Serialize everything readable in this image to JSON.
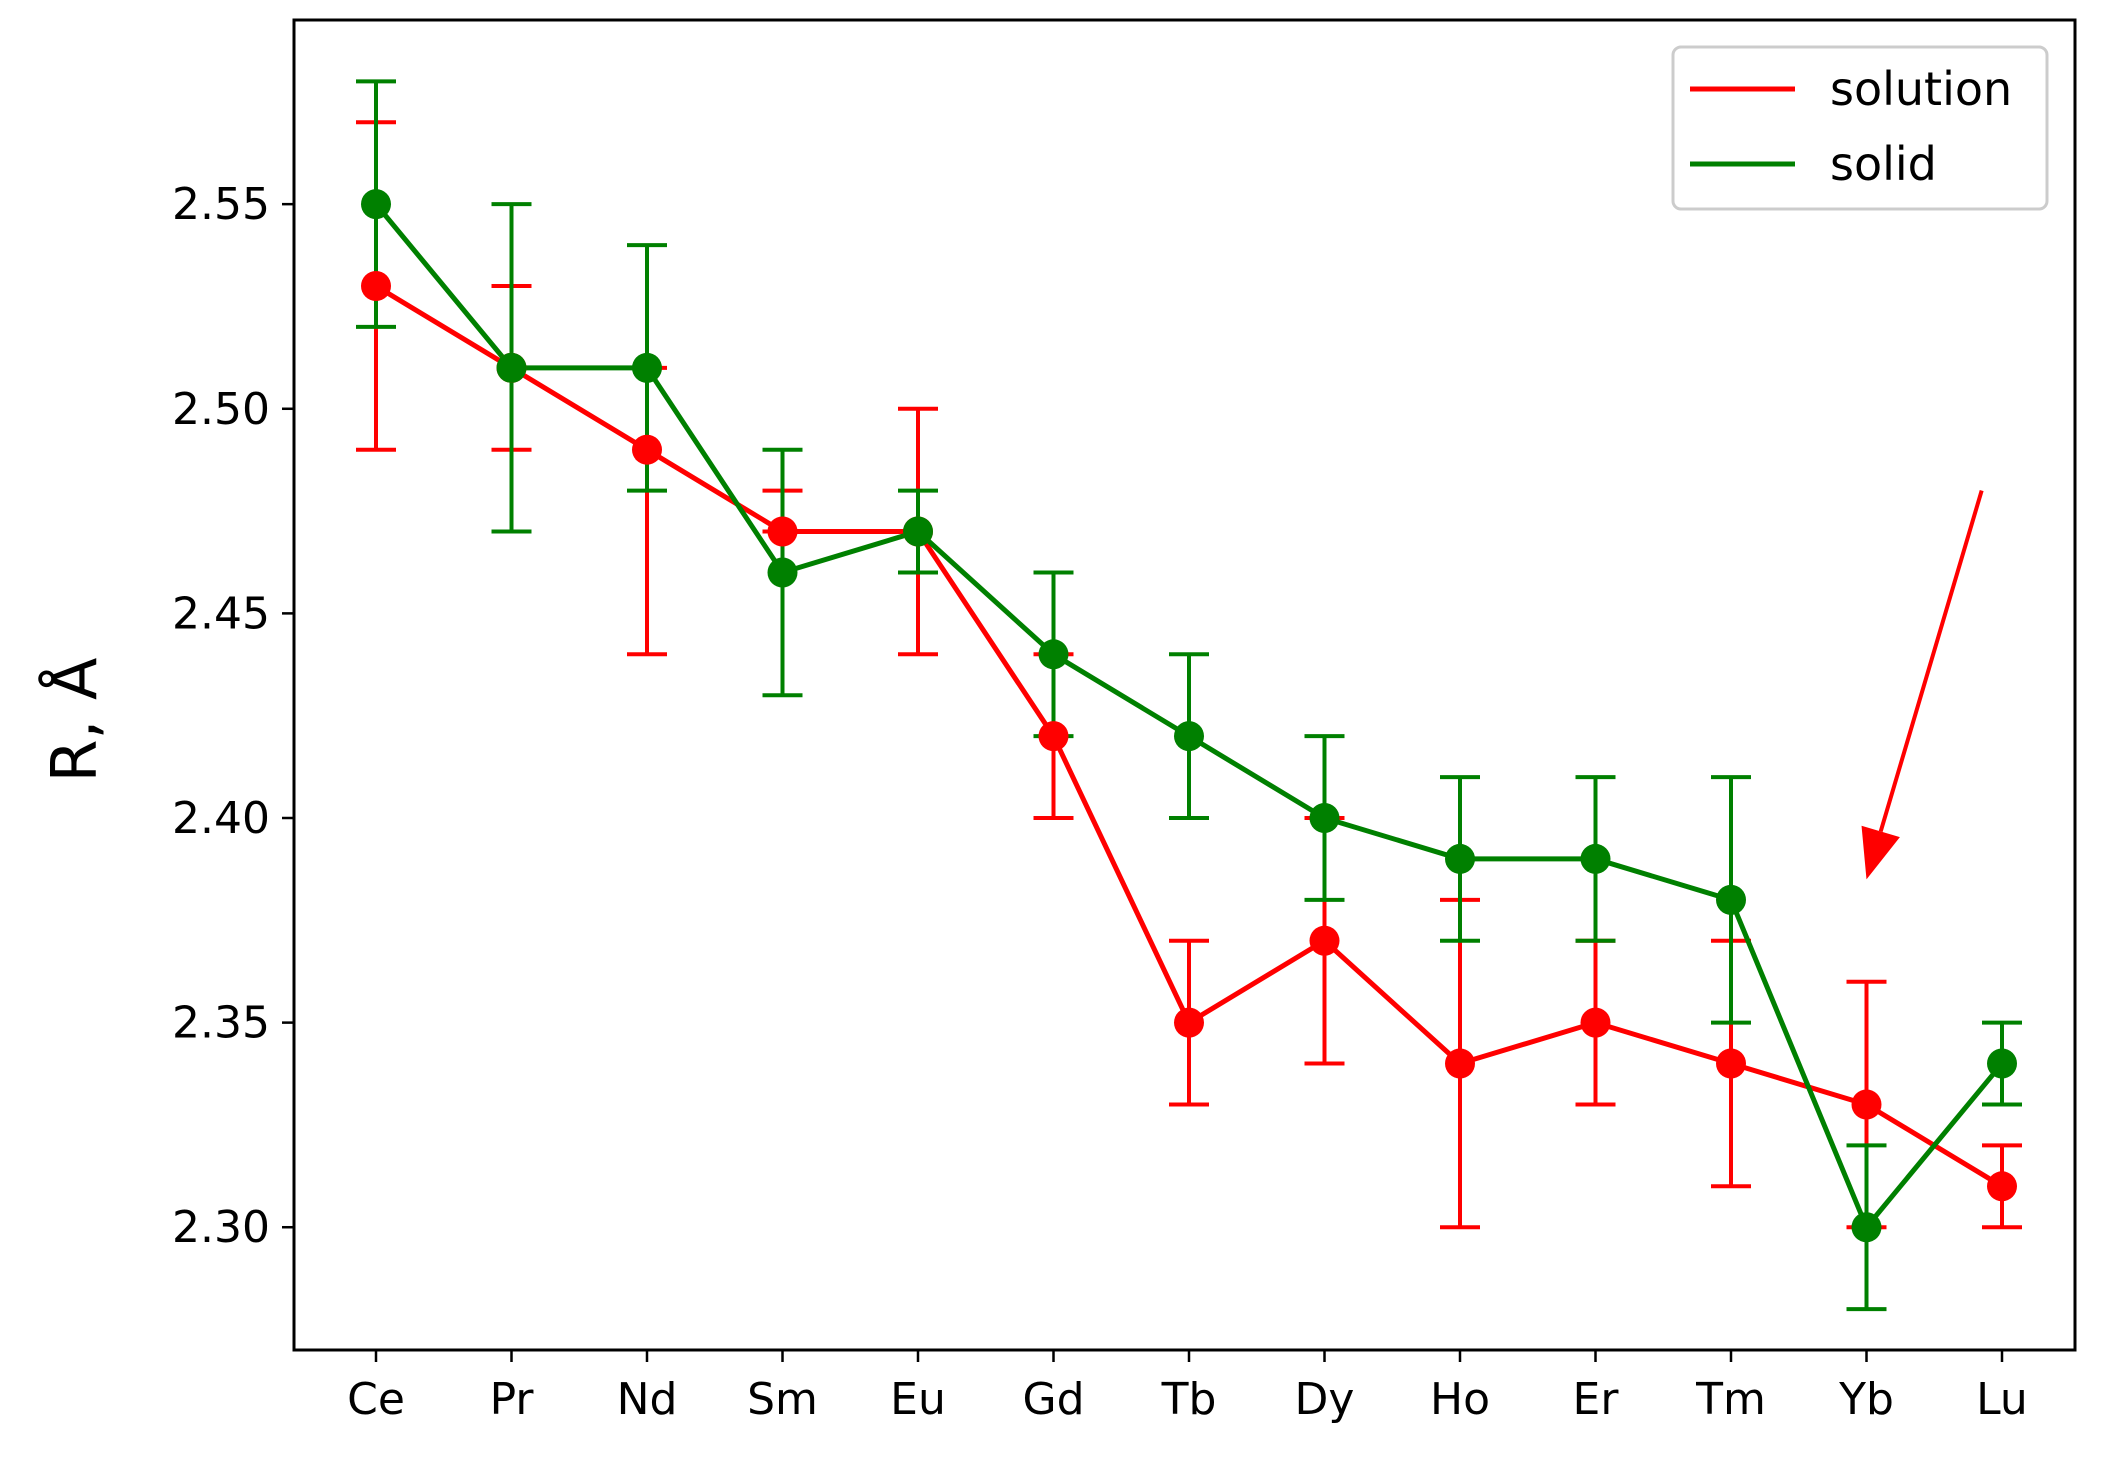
{
  "chart_data": {
    "type": "line",
    "title": "",
    "xlabel": "",
    "ylabel": "R, Å",
    "categories": [
      "Ce",
      "Pr",
      "Nd",
      "Sm",
      "Eu",
      "Gd",
      "Tb",
      "Dy",
      "Ho",
      "Er",
      "Tm",
      "Yb",
      "Lu"
    ],
    "yticks": [
      "2.30",
      "2.35",
      "2.40",
      "2.45",
      "2.50",
      "2.55"
    ],
    "ylim": [
      2.27,
      2.595
    ],
    "grid": false,
    "legend_position": "top-right",
    "series": [
      {
        "name": "solution",
        "color": "#ff0000",
        "values": [
          2.53,
          2.51,
          2.49,
          2.47,
          2.47,
          2.42,
          2.35,
          2.37,
          2.34,
          2.35,
          2.34,
          2.33,
          2.31
        ],
        "err_low": [
          2.49,
          2.49,
          2.44,
          2.47,
          2.44,
          2.4,
          2.33,
          2.34,
          2.3,
          2.33,
          2.31,
          2.3,
          2.3
        ],
        "err_high": [
          2.57,
          2.53,
          2.51,
          2.48,
          2.5,
          2.44,
          2.37,
          2.4,
          2.38,
          2.37,
          2.37,
          2.36,
          2.32
        ]
      },
      {
        "name": "solid",
        "color": "#008000",
        "values": [
          2.55,
          2.51,
          2.51,
          2.46,
          2.47,
          2.44,
          2.42,
          2.4,
          2.39,
          2.39,
          2.38,
          2.3,
          2.34
        ],
        "err_low": [
          2.52,
          2.47,
          2.48,
          2.43,
          2.46,
          2.42,
          2.4,
          2.38,
          2.37,
          2.37,
          2.35,
          2.28,
          2.33
        ],
        "err_high": [
          2.58,
          2.55,
          2.54,
          2.49,
          2.48,
          2.46,
          2.44,
          2.42,
          2.41,
          2.41,
          2.41,
          2.32,
          2.35
        ]
      }
    ],
    "annotations": [
      {
        "type": "arrow",
        "color": "#ff0000",
        "from": {
          "x": 11.85,
          "y": 2.48
        },
        "to": {
          "x": 11.0,
          "y": 2.385
        }
      }
    ]
  }
}
